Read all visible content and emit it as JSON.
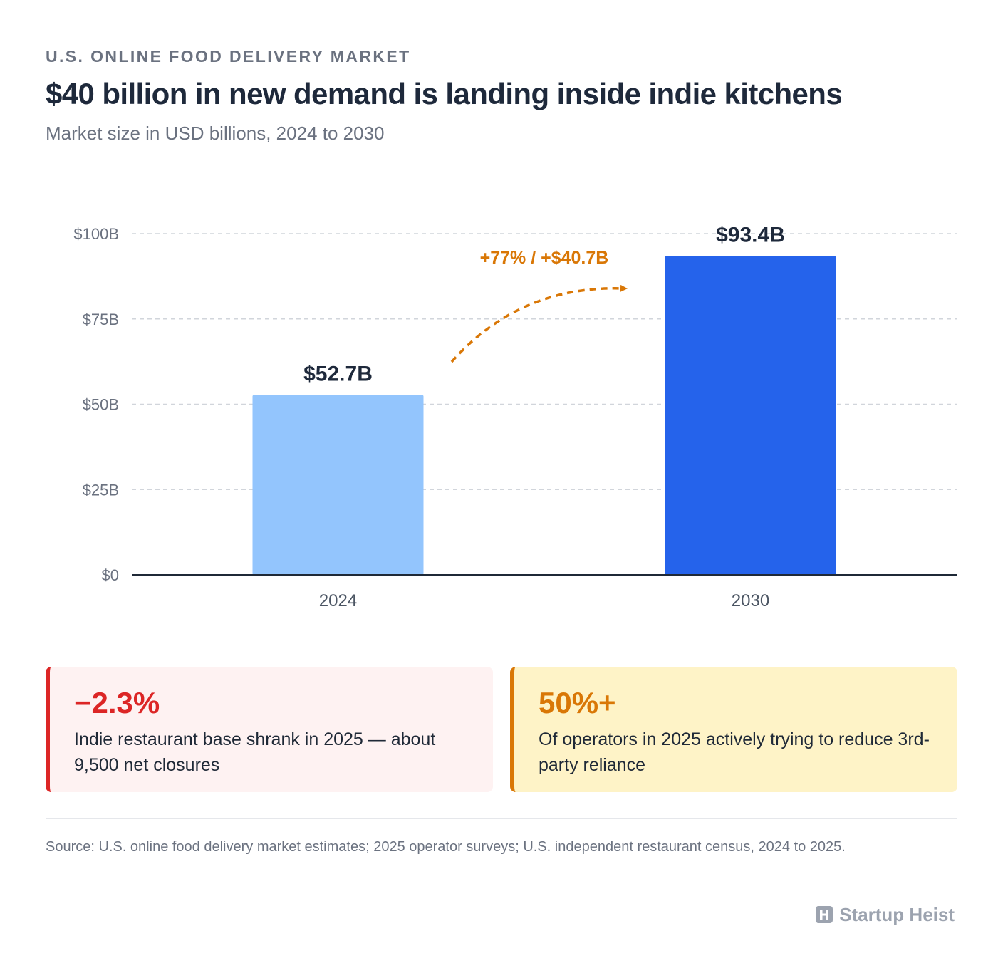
{
  "header": {
    "eyebrow": "U.S. ONLINE FOOD DELIVERY MARKET",
    "title": "$40 billion in new demand is landing inside indie kitchens",
    "subtitle": "Market size in USD billions, 2024 to 2030"
  },
  "chart_data": {
    "type": "bar",
    "categories": [
      "2024",
      "2030"
    ],
    "values": [
      52.7,
      93.4
    ],
    "value_labels": [
      "$52.7B",
      "$93.4B"
    ],
    "bar_colors": [
      "#93c5fd",
      "#2563eb"
    ],
    "ylim": [
      0,
      100
    ],
    "yticks": [
      0,
      25,
      50,
      75,
      100
    ],
    "ytick_labels": [
      "$0",
      "$25B",
      "$50B",
      "$75B",
      "$100B"
    ],
    "grid": true,
    "annotation": {
      "text": "+77% / +$40.7B",
      "color": "#d97706"
    }
  },
  "cards": [
    {
      "value": "−2.3%",
      "text": "Indie restaurant base shrank in 2025 — about 9,500 net closures",
      "accent": "#dc2626"
    },
    {
      "value": "50%+",
      "text": "Of operators in 2025 actively trying to reduce 3rd-party reliance",
      "accent": "#d97706"
    }
  ],
  "footer": {
    "source": "Source: U.S. online food delivery market estimates; 2025 operator surveys; U.S. independent restaurant census, 2024 to 2025.",
    "brand": "Startup Heist",
    "brand_icon": "h-logo-icon"
  }
}
